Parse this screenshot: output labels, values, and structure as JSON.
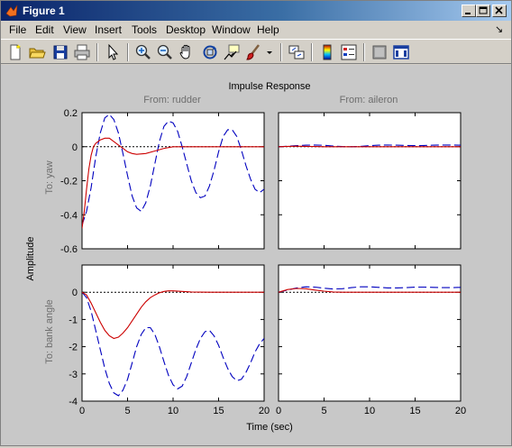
{
  "window": {
    "title": "Figure 1",
    "controls": [
      "minimize",
      "maximize",
      "close"
    ]
  },
  "menu": {
    "items": [
      "File",
      "Edit",
      "View",
      "Insert",
      "Tools",
      "Desktop",
      "Window",
      "Help"
    ],
    "dock_glyph": "↘"
  },
  "toolbar": {
    "icons": [
      "new-figure-icon",
      "open-file-icon",
      "save-icon",
      "print-icon",
      "arrow-pointer-icon",
      "zoom-in-icon",
      "zoom-out-icon",
      "pan-hand-icon",
      "rotate-3d-icon",
      "data-cursor-icon",
      "brush-icon",
      "link-plot-icon",
      "colorbar-icon",
      "legend-icon",
      "hide-plot-tools-icon",
      "show-plot-tools-icon"
    ]
  },
  "chart_data": {
    "type": "line",
    "title": "Impulse Response",
    "xlabel": "Time (sec)",
    "ylabel": "Amplitude",
    "column_titles": [
      "From: rudder",
      "From: aileron"
    ],
    "row_titles": [
      "To: yaw",
      "To: bank angle"
    ],
    "grid": false,
    "xlim": [
      0,
      20
    ],
    "x_ticks": [
      0,
      5,
      10,
      15,
      20
    ],
    "rows": [
      {
        "ylim": [
          -0.6,
          0.2
        ],
        "y_ticks": [
          "0.2",
          "0",
          "-0.2",
          "-0.4",
          "-0.6"
        ]
      },
      {
        "ylim": [
          -4,
          1
        ],
        "y_ticks": [
          "1",
          "0",
          "-1",
          "-2",
          "-3",
          "-4"
        ]
      }
    ],
    "colors": {
      "open_loop": "#0000bf",
      "closed_loop": "#cc0000",
      "axes_bg": "#ffffff",
      "figure_bg": "#c8c8c8",
      "label_gray": "#6e6e6e"
    },
    "panels": [
      {
        "row": 0,
        "col": 0,
        "series": [
          {
            "style": "dashed",
            "color": "#0000bf",
            "x": [
              0,
              0.5,
              1,
              1.5,
              2,
              2.5,
              3,
              3.5,
              4,
              4.5,
              5,
              5.5,
              6,
              6.5,
              7,
              7.5,
              8,
              8.5,
              9,
              9.5,
              10,
              10.5,
              11,
              11.5,
              12,
              12.5,
              13,
              13.5,
              14,
              14.5,
              15,
              15.5,
              16,
              16.5,
              17,
              17.5,
              18,
              18.5,
              19,
              19.5,
              20
            ],
            "y": [
              -0.46,
              -0.38,
              -0.24,
              -0.06,
              0.08,
              0.17,
              0.19,
              0.16,
              0.08,
              -0.04,
              -0.17,
              -0.29,
              -0.36,
              -0.38,
              -0.33,
              -0.23,
              -0.1,
              0.03,
              0.12,
              0.15,
              0.14,
              0.09,
              0.0,
              -0.1,
              -0.2,
              -0.27,
              -0.3,
              -0.29,
              -0.23,
              -0.14,
              -0.03,
              0.06,
              0.1,
              0.1,
              0.06,
              -0.02,
              -0.11,
              -0.19,
              -0.25,
              -0.27,
              -0.25
            ]
          },
          {
            "style": "solid",
            "color": "#cc0000",
            "x": [
              0,
              0.25,
              0.5,
              0.75,
              1,
              1.25,
              1.5,
              2,
              2.5,
              3,
              3.5,
              4,
              4.5,
              5,
              5.5,
              6,
              7,
              8,
              9,
              10,
              11,
              12,
              14,
              16,
              18,
              20
            ],
            "y": [
              -0.48,
              -0.38,
              -0.25,
              -0.13,
              -0.05,
              0.0,
              0.02,
              0.04,
              0.05,
              0.05,
              0.03,
              0.01,
              -0.01,
              -0.03,
              -0.04,
              -0.045,
              -0.04,
              -0.025,
              -0.01,
              0.0,
              0.0,
              0.0,
              0.0,
              0.0,
              0.0,
              0.0
            ]
          }
        ]
      },
      {
        "row": 0,
        "col": 1,
        "series": [
          {
            "style": "dashed",
            "color": "#0000bf",
            "x": [
              0,
              1,
              2,
              3,
              4,
              5,
              6,
              7,
              8,
              9,
              10,
              11,
              12,
              13,
              14,
              15,
              16,
              17,
              18,
              19,
              20
            ],
            "y": [
              0.0,
              0.003,
              0.006,
              0.009,
              0.01,
              0.008,
              0.004,
              0.001,
              0.0,
              0.002,
              0.006,
              0.009,
              0.01,
              0.009,
              0.007,
              0.006,
              0.007,
              0.009,
              0.01,
              0.01,
              0.009
            ]
          },
          {
            "style": "solid",
            "color": "#cc0000",
            "x": [
              0,
              1,
              2,
              3,
              4,
              5,
              6,
              8,
              10,
              15,
              20
            ],
            "y": [
              0.0,
              0.002,
              0.003,
              0.002,
              0.001,
              0.0,
              0.0,
              0.0,
              0.0,
              0.0,
              0.0
            ]
          }
        ]
      },
      {
        "row": 1,
        "col": 0,
        "series": [
          {
            "style": "dashed",
            "color": "#0000bf",
            "x": [
              0,
              0.5,
              1,
              1.5,
              2,
              2.5,
              3,
              3.5,
              4,
              4.5,
              5,
              5.5,
              6,
              6.5,
              7,
              7.5,
              8,
              8.5,
              9,
              9.5,
              10,
              10.5,
              11,
              11.5,
              12,
              12.5,
              13,
              13.5,
              14,
              14.5,
              15,
              15.5,
              16,
              16.5,
              17,
              17.5,
              18,
              18.5,
              19,
              19.5,
              20
            ],
            "y": [
              0.0,
              -0.2,
              -0.7,
              -1.4,
              -2.1,
              -2.8,
              -3.35,
              -3.7,
              -3.8,
              -3.6,
              -3.2,
              -2.6,
              -2.0,
              -1.55,
              -1.3,
              -1.3,
              -1.55,
              -2.0,
              -2.55,
              -3.05,
              -3.4,
              -3.55,
              -3.45,
              -3.1,
              -2.6,
              -2.1,
              -1.7,
              -1.45,
              -1.4,
              -1.6,
              -1.95,
              -2.4,
              -2.8,
              -3.1,
              -3.25,
              -3.2,
              -2.95,
              -2.6,
              -2.2,
              -1.9,
              -1.7
            ]
          },
          {
            "style": "solid",
            "color": "#cc0000",
            "x": [
              0,
              0.5,
              1,
              1.5,
              2,
              2.5,
              3,
              3.5,
              4,
              4.5,
              5,
              5.5,
              6,
              6.5,
              7,
              7.5,
              8,
              8.5,
              9,
              9.5,
              10,
              11,
              12,
              14,
              16,
              18,
              20
            ],
            "y": [
              0.0,
              -0.1,
              -0.4,
              -0.75,
              -1.1,
              -1.4,
              -1.6,
              -1.7,
              -1.65,
              -1.5,
              -1.3,
              -1.05,
              -0.8,
              -0.55,
              -0.35,
              -0.2,
              -0.1,
              -0.02,
              0.03,
              0.05,
              0.05,
              0.03,
              0.01,
              0.0,
              0.0,
              0.0,
              0.0
            ]
          }
        ]
      },
      {
        "row": 1,
        "col": 1,
        "series": [
          {
            "style": "dashed",
            "color": "#0000bf",
            "x": [
              0,
              1,
              2,
              3,
              4,
              5,
              6,
              7,
              8,
              9,
              10,
              11,
              12,
              13,
              14,
              15,
              16,
              17,
              18,
              19,
              20
            ],
            "y": [
              0.0,
              0.08,
              0.16,
              0.2,
              0.19,
              0.15,
              0.12,
              0.13,
              0.17,
              0.2,
              0.2,
              0.18,
              0.16,
              0.16,
              0.17,
              0.19,
              0.19,
              0.18,
              0.17,
              0.17,
              0.18
            ]
          },
          {
            "style": "solid",
            "color": "#cc0000",
            "x": [
              0,
              1,
              2,
              3,
              4,
              5,
              6,
              7,
              8,
              10,
              15,
              20
            ],
            "y": [
              0.0,
              0.1,
              0.14,
              0.13,
              0.08,
              0.04,
              0.01,
              0.0,
              0.0,
              0.0,
              0.0,
              0.0
            ]
          }
        ]
      }
    ]
  }
}
